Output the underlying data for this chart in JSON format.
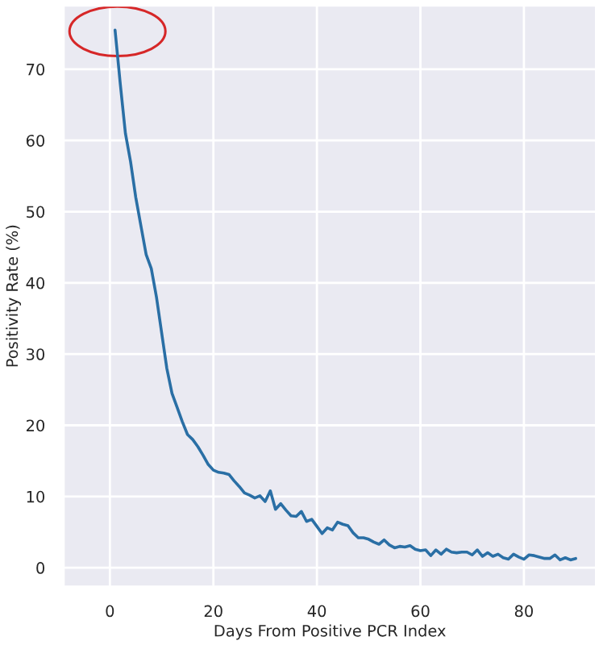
{
  "chart_data": {
    "type": "line",
    "xlabel": "Days From Positive PCR Index",
    "ylabel": "Positivity Rate (%)",
    "x": [
      1,
      2,
      3,
      4,
      5,
      6,
      7,
      8,
      9,
      10,
      11,
      12,
      13,
      14,
      15,
      16,
      17,
      18,
      19,
      20,
      21,
      22,
      23,
      24,
      25,
      26,
      27,
      28,
      29,
      30,
      31,
      32,
      33,
      34,
      35,
      36,
      37,
      38,
      39,
      40,
      41,
      42,
      43,
      44,
      45,
      46,
      47,
      48,
      49,
      50,
      51,
      52,
      53,
      54,
      55,
      56,
      57,
      58,
      59,
      60,
      61,
      62,
      63,
      64,
      65,
      66,
      67,
      68,
      69,
      70,
      71,
      72,
      73,
      74,
      75,
      76,
      77,
      78,
      79,
      80,
      81,
      82,
      83,
      84,
      85,
      86,
      87,
      88,
      89,
      90
    ],
    "series": [
      {
        "color": "#2a6fa5",
        "values": [
          75.5,
          68,
          61,
          57,
          52,
          48,
          44,
          42,
          38,
          33,
          28,
          24.5,
          22.5,
          20.5,
          18.7,
          18,
          17,
          15.8,
          14.5,
          13.7,
          13.4,
          13.3,
          13.1,
          12.2,
          11.4,
          10.5,
          10.2,
          9.8,
          10.1,
          9.3,
          10.8,
          8.2,
          9.0,
          8.1,
          7.3,
          7.2,
          7.9,
          6.5,
          6.8,
          5.8,
          4.8,
          5.6,
          5.3,
          6.4,
          6.1,
          5.9,
          4.9,
          4.2,
          4.2,
          4.0,
          3.6,
          3.3,
          3.9,
          3.2,
          2.8,
          3.0,
          2.9,
          3.1,
          2.6,
          2.4,
          2.5,
          1.7,
          2.5,
          1.9,
          2.6,
          2.2,
          2.1,
          2.2,
          2.2,
          1.8,
          2.5,
          1.6,
          2.1,
          1.6,
          1.9,
          1.4,
          1.2,
          1.9,
          1.5,
          1.2,
          1.8,
          1.7,
          1.5,
          1.3,
          1.3,
          1.8,
          1.1,
          1.4,
          1.1,
          1.3
        ]
      }
    ],
    "xlim": [
      -9,
      94
    ],
    "ylim": [
      -2.7,
      79
    ],
    "xticks": [
      0,
      20,
      40,
      60,
      80
    ],
    "yticks": [
      0,
      10,
      20,
      30,
      40,
      50,
      60,
      70
    ],
    "grid": true,
    "line_style": "solid",
    "marker": "none"
  }
}
